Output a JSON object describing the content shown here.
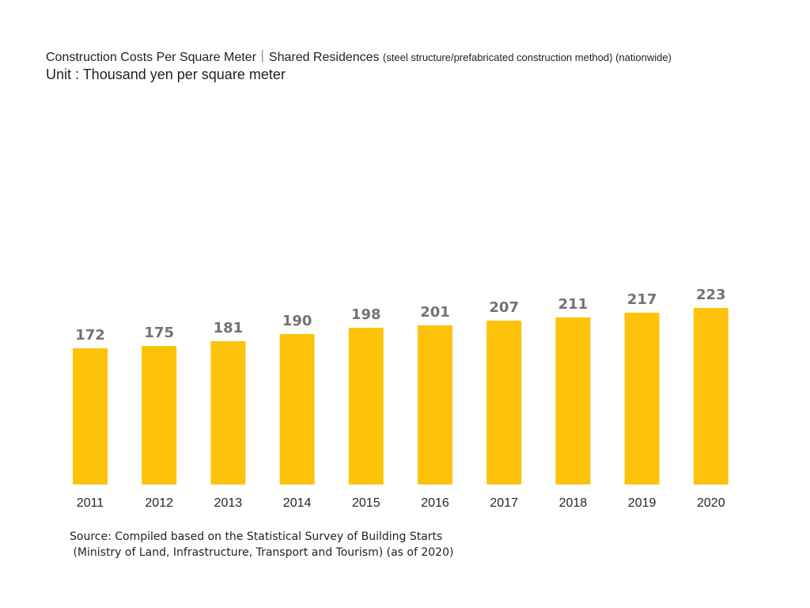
{
  "title": {
    "main": "Construction Costs Per Square Meter｜Shared Residences ",
    "sub": "(steel structure/prefabricated construction method) (nationwide)"
  },
  "unit_label": "Unit : Thousand yen per square meter",
  "source": {
    "line1": "Source: Compiled based on the Statistical Survey of Building Starts",
    "line2": " (Ministry of Land, Infrastructure, Transport and Tourism) (as of 2020)"
  },
  "colors": {
    "bar": "#FDC20A",
    "value_label": "#767171",
    "axis_label": "#262626"
  },
  "chart_data": {
    "type": "bar",
    "title": "Construction Costs Per Square Meter｜Shared Residences (steel structure/prefabricated construction method) (nationwide)",
    "ylabel": "Thousand yen per square meter",
    "xlabel": "",
    "categories": [
      "2011",
      "2012",
      "2013",
      "2014",
      "2015",
      "2016",
      "2017",
      "2018",
      "2019",
      "2020"
    ],
    "values": [
      172,
      175,
      181,
      190,
      198,
      201,
      207,
      211,
      217,
      223
    ],
    "ylim": [
      0,
      240
    ],
    "grid": false,
    "legend": "none"
  }
}
